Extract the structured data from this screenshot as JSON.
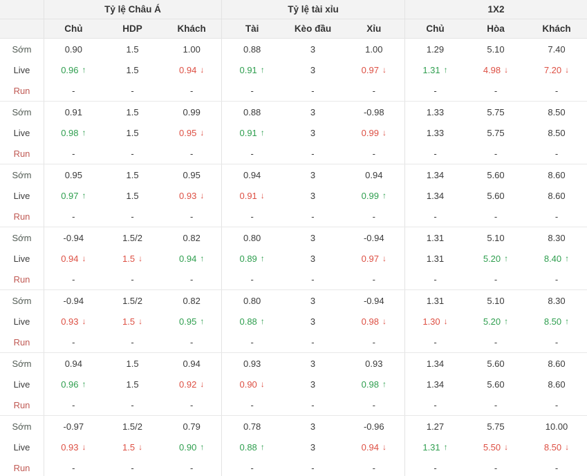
{
  "icons": {
    "up_arrow": "↑",
    "down_arrow": "↓"
  },
  "colors": {
    "trend_up": "#2e9e4e",
    "trend_down": "#dd4f43",
    "run_label": "#c05a54",
    "header_background": "#f3f3f3"
  },
  "table": {
    "column_groups": [
      {
        "title": "Tỷ lệ Châu Á",
        "columns": [
          "Chủ",
          "HDP",
          "Khách"
        ]
      },
      {
        "title": "Tỷ lệ tài xỉu",
        "columns": [
          "Tài",
          "Kèo đầu",
          "Xỉu"
        ]
      },
      {
        "title": "1X2",
        "columns": [
          "Chủ",
          "Hòa",
          "Khách"
        ]
      }
    ],
    "row_labels": [
      "Sớm",
      "Live",
      "Run"
    ],
    "groups": [
      {
        "rows": [
          {
            "key": "som",
            "label": "Sớm",
            "cells": [
              {
                "v": "0.90"
              },
              {
                "v": "1.5"
              },
              {
                "v": "1.00"
              },
              {
                "v": "0.88"
              },
              {
                "v": "3"
              },
              {
                "v": "1.00"
              },
              {
                "v": "1.29"
              },
              {
                "v": "5.10"
              },
              {
                "v": "7.40"
              }
            ]
          },
          {
            "key": "live",
            "label": "Live",
            "cells": [
              {
                "v": "0.96",
                "t": "up"
              },
              {
                "v": "1.5"
              },
              {
                "v": "0.94",
                "t": "down"
              },
              {
                "v": "0.91",
                "t": "up"
              },
              {
                "v": "3"
              },
              {
                "v": "0.97",
                "t": "down"
              },
              {
                "v": "1.31",
                "t": "up"
              },
              {
                "v": "4.98",
                "t": "down"
              },
              {
                "v": "7.20",
                "t": "down"
              }
            ]
          },
          {
            "key": "run",
            "label": "Run",
            "cells": [
              {
                "v": "-"
              },
              {
                "v": "-"
              },
              {
                "v": "-"
              },
              {
                "v": "-"
              },
              {
                "v": "-"
              },
              {
                "v": "-"
              },
              {
                "v": "-"
              },
              {
                "v": "-"
              },
              {
                "v": "-"
              }
            ]
          }
        ]
      },
      {
        "rows": [
          {
            "key": "som",
            "label": "Sớm",
            "cells": [
              {
                "v": "0.91"
              },
              {
                "v": "1.5"
              },
              {
                "v": "0.99"
              },
              {
                "v": "0.88"
              },
              {
                "v": "3"
              },
              {
                "v": "-0.98"
              },
              {
                "v": "1.33"
              },
              {
                "v": "5.75"
              },
              {
                "v": "8.50"
              }
            ]
          },
          {
            "key": "live",
            "label": "Live",
            "cells": [
              {
                "v": "0.98",
                "t": "up"
              },
              {
                "v": "1.5"
              },
              {
                "v": "0.95",
                "t": "down"
              },
              {
                "v": "0.91",
                "t": "up"
              },
              {
                "v": "3"
              },
              {
                "v": "0.99",
                "t": "down"
              },
              {
                "v": "1.33"
              },
              {
                "v": "5.75"
              },
              {
                "v": "8.50"
              }
            ]
          },
          {
            "key": "run",
            "label": "Run",
            "cells": [
              {
                "v": "-"
              },
              {
                "v": "-"
              },
              {
                "v": "-"
              },
              {
                "v": "-"
              },
              {
                "v": "-"
              },
              {
                "v": "-"
              },
              {
                "v": "-"
              },
              {
                "v": "-"
              },
              {
                "v": "-"
              }
            ]
          }
        ]
      },
      {
        "rows": [
          {
            "key": "som",
            "label": "Sớm",
            "cells": [
              {
                "v": "0.95"
              },
              {
                "v": "1.5"
              },
              {
                "v": "0.95"
              },
              {
                "v": "0.94"
              },
              {
                "v": "3"
              },
              {
                "v": "0.94"
              },
              {
                "v": "1.34"
              },
              {
                "v": "5.60"
              },
              {
                "v": "8.60"
              }
            ]
          },
          {
            "key": "live",
            "label": "Live",
            "cells": [
              {
                "v": "0.97",
                "t": "up"
              },
              {
                "v": "1.5"
              },
              {
                "v": "0.93",
                "t": "down"
              },
              {
                "v": "0.91",
                "t": "down"
              },
              {
                "v": "3"
              },
              {
                "v": "0.99",
                "t": "up"
              },
              {
                "v": "1.34"
              },
              {
                "v": "5.60"
              },
              {
                "v": "8.60"
              }
            ]
          },
          {
            "key": "run",
            "label": "Run",
            "cells": [
              {
                "v": "-"
              },
              {
                "v": "-"
              },
              {
                "v": "-"
              },
              {
                "v": "-"
              },
              {
                "v": "-"
              },
              {
                "v": "-"
              },
              {
                "v": "-"
              },
              {
                "v": "-"
              },
              {
                "v": "-"
              }
            ]
          }
        ]
      },
      {
        "rows": [
          {
            "key": "som",
            "label": "Sớm",
            "cells": [
              {
                "v": "-0.94"
              },
              {
                "v": "1.5/2"
              },
              {
                "v": "0.82"
              },
              {
                "v": "0.80"
              },
              {
                "v": "3"
              },
              {
                "v": "-0.94"
              },
              {
                "v": "1.31"
              },
              {
                "v": "5.10"
              },
              {
                "v": "8.30"
              }
            ]
          },
          {
            "key": "live",
            "label": "Live",
            "cells": [
              {
                "v": "0.94",
                "t": "down"
              },
              {
                "v": "1.5",
                "t": "down"
              },
              {
                "v": "0.94",
                "t": "up"
              },
              {
                "v": "0.89",
                "t": "up"
              },
              {
                "v": "3"
              },
              {
                "v": "0.97",
                "t": "down"
              },
              {
                "v": "1.31"
              },
              {
                "v": "5.20",
                "t": "up"
              },
              {
                "v": "8.40",
                "t": "up"
              }
            ]
          },
          {
            "key": "run",
            "label": "Run",
            "cells": [
              {
                "v": "-"
              },
              {
                "v": "-"
              },
              {
                "v": "-"
              },
              {
                "v": "-"
              },
              {
                "v": "-"
              },
              {
                "v": "-"
              },
              {
                "v": "-"
              },
              {
                "v": "-"
              },
              {
                "v": "-"
              }
            ]
          }
        ]
      },
      {
        "rows": [
          {
            "key": "som",
            "label": "Sớm",
            "cells": [
              {
                "v": "-0.94"
              },
              {
                "v": "1.5/2"
              },
              {
                "v": "0.82"
              },
              {
                "v": "0.80"
              },
              {
                "v": "3"
              },
              {
                "v": "-0.94"
              },
              {
                "v": "1.31"
              },
              {
                "v": "5.10"
              },
              {
                "v": "8.30"
              }
            ]
          },
          {
            "key": "live",
            "label": "Live",
            "cells": [
              {
                "v": "0.93",
                "t": "down"
              },
              {
                "v": "1.5",
                "t": "down"
              },
              {
                "v": "0.95",
                "t": "up"
              },
              {
                "v": "0.88",
                "t": "up"
              },
              {
                "v": "3"
              },
              {
                "v": "0.98",
                "t": "down"
              },
              {
                "v": "1.30",
                "t": "down"
              },
              {
                "v": "5.20",
                "t": "up"
              },
              {
                "v": "8.50",
                "t": "up"
              }
            ]
          },
          {
            "key": "run",
            "label": "Run",
            "cells": [
              {
                "v": "-"
              },
              {
                "v": "-"
              },
              {
                "v": "-"
              },
              {
                "v": "-"
              },
              {
                "v": "-"
              },
              {
                "v": "-"
              },
              {
                "v": "-"
              },
              {
                "v": "-"
              },
              {
                "v": "-"
              }
            ]
          }
        ]
      },
      {
        "rows": [
          {
            "key": "som",
            "label": "Sớm",
            "cells": [
              {
                "v": "0.94"
              },
              {
                "v": "1.5"
              },
              {
                "v": "0.94"
              },
              {
                "v": "0.93"
              },
              {
                "v": "3"
              },
              {
                "v": "0.93"
              },
              {
                "v": "1.34"
              },
              {
                "v": "5.60"
              },
              {
                "v": "8.60"
              }
            ]
          },
          {
            "key": "live",
            "label": "Live",
            "cells": [
              {
                "v": "0.96",
                "t": "up"
              },
              {
                "v": "1.5"
              },
              {
                "v": "0.92",
                "t": "down"
              },
              {
                "v": "0.90",
                "t": "down"
              },
              {
                "v": "3"
              },
              {
                "v": "0.98",
                "t": "up"
              },
              {
                "v": "1.34"
              },
              {
                "v": "5.60"
              },
              {
                "v": "8.60"
              }
            ]
          },
          {
            "key": "run",
            "label": "Run",
            "cells": [
              {
                "v": "-"
              },
              {
                "v": "-"
              },
              {
                "v": "-"
              },
              {
                "v": "-"
              },
              {
                "v": "-"
              },
              {
                "v": "-"
              },
              {
                "v": "-"
              },
              {
                "v": "-"
              },
              {
                "v": "-"
              }
            ]
          }
        ]
      },
      {
        "rows": [
          {
            "key": "som",
            "label": "Sớm",
            "cells": [
              {
                "v": "-0.97"
              },
              {
                "v": "1.5/2"
              },
              {
                "v": "0.79"
              },
              {
                "v": "0.78"
              },
              {
                "v": "3"
              },
              {
                "v": "-0.96"
              },
              {
                "v": "1.27"
              },
              {
                "v": "5.75"
              },
              {
                "v": "10.00"
              }
            ]
          },
          {
            "key": "live",
            "label": "Live",
            "cells": [
              {
                "v": "0.93",
                "t": "down"
              },
              {
                "v": "1.5",
                "t": "down"
              },
              {
                "v": "0.90",
                "t": "up"
              },
              {
                "v": "0.88",
                "t": "up"
              },
              {
                "v": "3"
              },
              {
                "v": "0.94",
                "t": "down"
              },
              {
                "v": "1.31",
                "t": "up"
              },
              {
                "v": "5.50",
                "t": "down"
              },
              {
                "v": "8.50",
                "t": "down"
              }
            ]
          },
          {
            "key": "run",
            "label": "Run",
            "cells": [
              {
                "v": "-"
              },
              {
                "v": "-"
              },
              {
                "v": "-"
              },
              {
                "v": "-"
              },
              {
                "v": "-"
              },
              {
                "v": "-"
              },
              {
                "v": "-"
              },
              {
                "v": "-"
              },
              {
                "v": "-"
              }
            ]
          }
        ]
      }
    ]
  }
}
